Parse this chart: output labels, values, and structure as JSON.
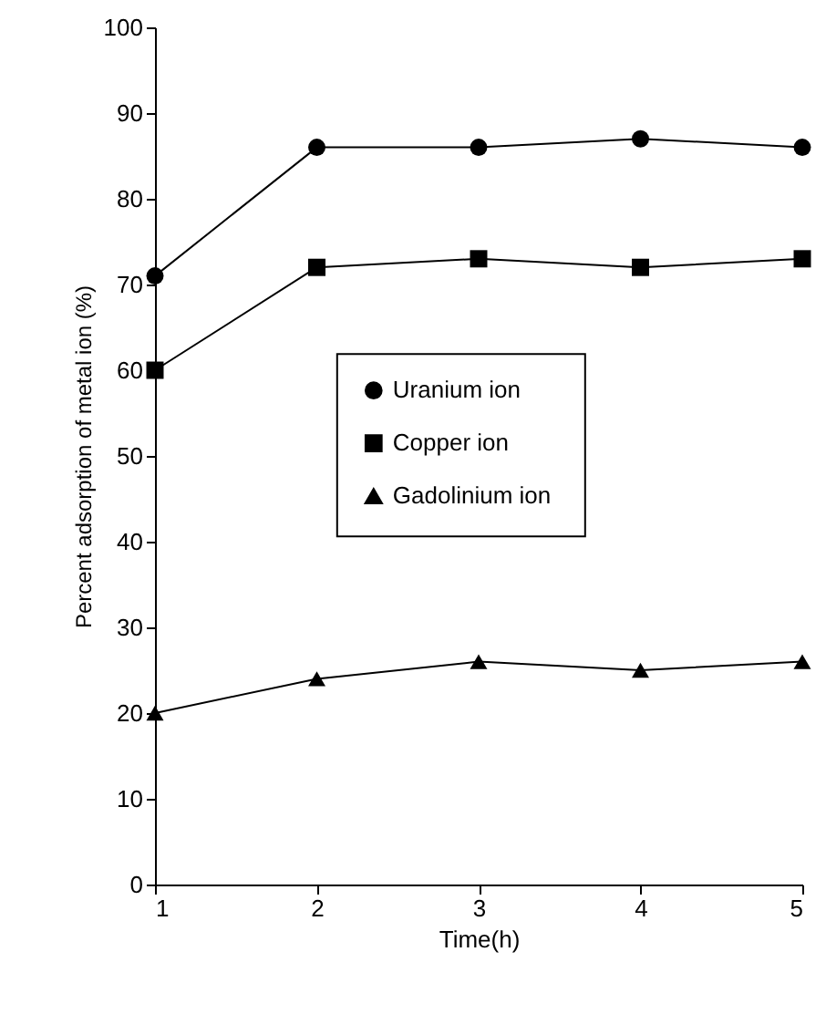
{
  "chart_data": {
    "type": "line",
    "xlabel": "Time(h)",
    "ylabel": "Percent adsorption of metal ion (%)",
    "x": [
      1,
      2,
      3,
      4,
      5
    ],
    "series": [
      {
        "name": "Uranium  ion",
        "color": "#000000",
        "marker": "circle",
        "values": [
          71,
          86,
          86,
          87,
          86
        ]
      },
      {
        "name": "Copper ion",
        "color": "#000000",
        "marker": "square",
        "values": [
          60,
          72,
          73,
          72,
          73
        ]
      },
      {
        "name": "Gadolinium  ion",
        "color": "#000000",
        "marker": "triangle",
        "values": [
          20,
          24,
          26,
          25,
          26
        ]
      }
    ],
    "xlim": [
      1,
      5
    ],
    "xticks": [
      1,
      2,
      3,
      4,
      5
    ],
    "ylim": [
      0,
      100
    ],
    "yticks": [
      0,
      10,
      20,
      30,
      40,
      50,
      60,
      70,
      80,
      90,
      100
    ],
    "grid": false,
    "legend": "center"
  }
}
